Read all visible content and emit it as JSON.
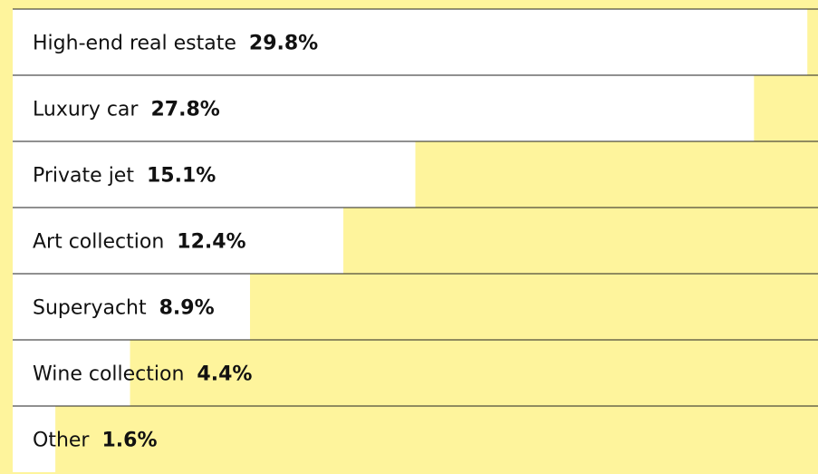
{
  "chart_data": {
    "type": "bar",
    "orientation": "horizontal",
    "categories": [
      "High-end real estate",
      "Luxury car",
      "Private jet",
      "Art collection",
      "Superyacht",
      "Wine collection",
      "Other"
    ],
    "values": [
      29.8,
      27.8,
      15.1,
      12.4,
      8.9,
      4.4,
      1.6
    ],
    "value_labels": [
      "29.8%",
      "27.8%",
      "15.1%",
      "12.4%",
      "8.9%",
      "4.4%",
      "1.6%"
    ],
    "color": "#ffffff",
    "background": "#fef49c",
    "xlim": [
      0,
      30.2
    ]
  }
}
